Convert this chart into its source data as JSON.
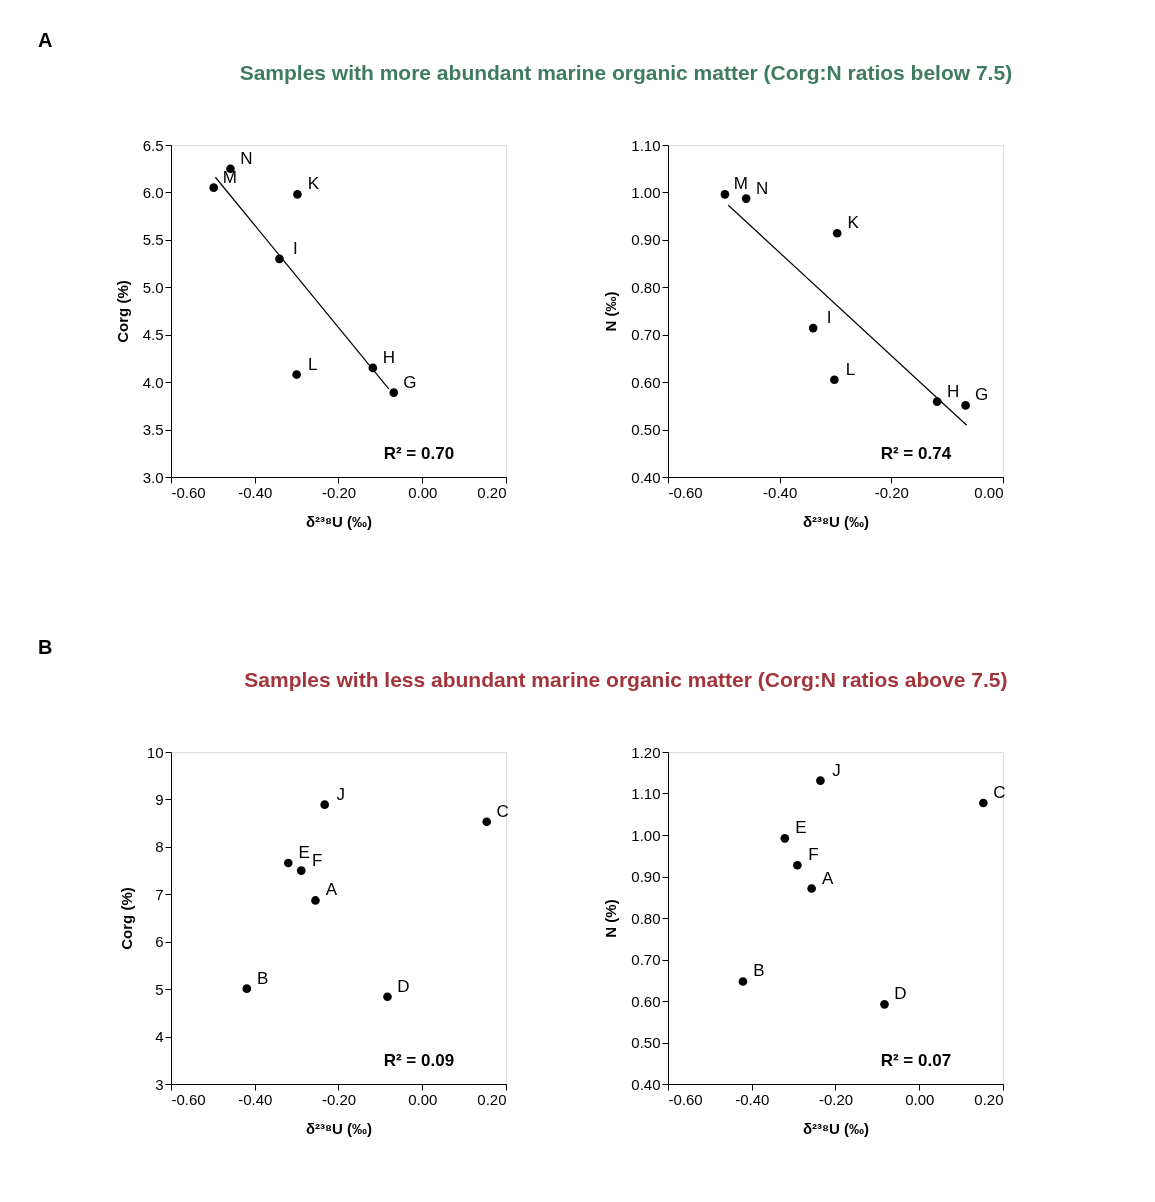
{
  "chart_data": [
    {
      "type": "scatter",
      "title": "Samples with more abundant marine organic matter (Corg:N ratios below 7.5)",
      "xlabel": "δ²³⁸U (‰)",
      "ylabel": "Corg (%)",
      "marker": "circle",
      "grid": false,
      "xlim": [
        -0.6,
        0.2
      ],
      "xticks": [
        {
          "value": -0.6,
          "label": "-0.60"
        },
        {
          "value": -0.4,
          "label": "-0.40"
        },
        {
          "value": -0.2,
          "label": "-0.20"
        },
        {
          "value": 0,
          "label": "0.00"
        },
        {
          "value": 0.2,
          "label": "0.20"
        }
      ],
      "ylim": [
        3,
        6.5
      ],
      "yticks": [
        {
          "value": 3,
          "label": "3.0"
        },
        3.5,
        {
          "value": 4,
          "label": "4.0"
        },
        4.5,
        {
          "value": 5,
          "label": "5.0"
        },
        5.5,
        {
          "value": 6,
          "label": "6.0"
        },
        6.5
      ],
      "series": [
        {
          "color": "#000000",
          "x": [
            -0.458,
            -0.498,
            -0.298,
            -0.341,
            -0.3,
            -0.118,
            -0.068
          ],
          "values": [
            6.25,
            6.05,
            5.98,
            5.3,
            4.08,
            4.15,
            3.89
          ],
          "value_labels": [
            "N",
            "M",
            "K",
            "I",
            "L",
            "H",
            "G"
          ]
        },
        {
          "type": "line",
          "marker": "none",
          "color": "#000000",
          "x": [
            -0.494,
            -0.08
          ],
          "values": [
            6.16,
            3.93
          ]
        }
      ],
      "annotations": [
        "A",
        "R² = 0.70"
      ]
    },
    {
      "type": "scatter",
      "xlabel": "δ²³⁸U (‰)",
      "ylabel": "N (‰)",
      "marker": "circle",
      "grid": false,
      "xlim": [
        -0.6,
        0
      ],
      "xticks": [
        {
          "value": -0.6,
          "label": "-0.60"
        },
        {
          "value": -0.4,
          "label": "-0.40"
        },
        {
          "value": -0.2,
          "label": "-0.20"
        },
        {
          "value": 0,
          "label": "0.00"
        }
      ],
      "ylim": [
        0.4,
        1.1
      ],
      "yticks": [
        {
          "value": 0.4,
          "label": "0.40"
        },
        {
          "value": 0.5,
          "label": "0.50"
        },
        {
          "value": 0.6,
          "label": "0.60"
        },
        {
          "value": 0.7,
          "label": "0.70"
        },
        {
          "value": 0.8,
          "label": "0.80"
        },
        {
          "value": 0.9,
          "label": "0.90"
        },
        {
          "value": 1,
          "label": "1.00"
        },
        {
          "value": 1.1,
          "label": "1.10"
        }
      ],
      "series": [
        {
          "color": "#000000",
          "x": [
            -0.498,
            -0.46,
            -0.297,
            -0.34,
            -0.302,
            -0.118,
            -0.067
          ],
          "values": [
            0.996,
            0.987,
            0.914,
            0.714,
            0.605,
            0.559,
            0.551
          ],
          "value_labels": [
            "M",
            "N",
            "K",
            "I",
            "L",
            "H",
            "G"
          ]
        },
        {
          "type": "line",
          "marker": "none",
          "color": "#000000",
          "x": [
            -0.492,
            -0.065
          ],
          "values": [
            0.973,
            0.509
          ]
        }
      ],
      "annotations": [
        "R² = 0.74"
      ]
    },
    {
      "type": "scatter",
      "title": "Samples with less abundant marine organic matter (Corg:N ratios above 7.5)",
      "xlabel": "δ²³⁸U (‰)",
      "ylabel": "Corg (%)",
      "marker": "circle",
      "grid": false,
      "xlim": [
        -0.6,
        0.2
      ],
      "xticks": [
        {
          "value": -0.6,
          "label": "-0.60"
        },
        {
          "value": -0.4,
          "label": "-0.40"
        },
        {
          "value": -0.2,
          "label": "-0.20"
        },
        {
          "value": 0,
          "label": "0.00"
        },
        {
          "value": 0.2,
          "label": "0.20"
        }
      ],
      "ylim": [
        3,
        10
      ],
      "yticks": [
        3,
        4,
        5,
        6,
        7,
        8,
        9,
        10
      ],
      "series": [
        {
          "color": "#000000",
          "x": [
            -0.233,
            0.154,
            -0.32,
            -0.289,
            -0.255,
            -0.419,
            -0.083
          ],
          "values": [
            8.89,
            8.53,
            7.66,
            7.5,
            6.87,
            5.01,
            4.84
          ],
          "value_labels": [
            "J",
            "C",
            "E",
            "F",
            "A",
            "B",
            "D"
          ]
        }
      ],
      "annotations": [
        "B",
        "R² = 0.09"
      ]
    },
    {
      "type": "scatter",
      "xlabel": "δ²³⁸U (‰)",
      "ylabel": "N (%)",
      "marker": "circle",
      "grid": false,
      "xlim": [
        -0.6,
        0.2
      ],
      "xticks": [
        {
          "value": -0.6,
          "label": "-0.60"
        },
        {
          "value": -0.4,
          "label": "-0.40"
        },
        {
          "value": -0.2,
          "label": "-0.20"
        },
        {
          "value": 0,
          "label": "0.00"
        },
        {
          "value": 0.2,
          "label": "0.20"
        }
      ],
      "ylim": [
        0.4,
        1.2
      ],
      "yticks": [
        {
          "value": 0.4,
          "label": "0.40"
        },
        {
          "value": 0.5,
          "label": "0.50"
        },
        {
          "value": 0.6,
          "label": "0.60"
        },
        {
          "value": 0.7,
          "label": "0.70"
        },
        {
          "value": 0.8,
          "label": "0.80"
        },
        {
          "value": 0.9,
          "label": "0.90"
        },
        {
          "value": 1,
          "label": "1.00"
        },
        {
          "value": 1.1,
          "label": "1.10"
        },
        {
          "value": 1.2,
          "label": "1.20"
        }
      ],
      "series": [
        {
          "color": "#000000",
          "x": [
            -0.236,
            0.153,
            -0.321,
            -0.291,
            -0.257,
            -0.421,
            -0.083
          ],
          "values": [
            1.131,
            1.077,
            0.992,
            0.927,
            0.871,
            0.647,
            0.592
          ],
          "value_labels": [
            "J",
            "C",
            "E",
            "F",
            "A",
            "B",
            "D"
          ]
        }
      ],
      "annotations": [
        "R² = 0.07"
      ]
    }
  ]
}
